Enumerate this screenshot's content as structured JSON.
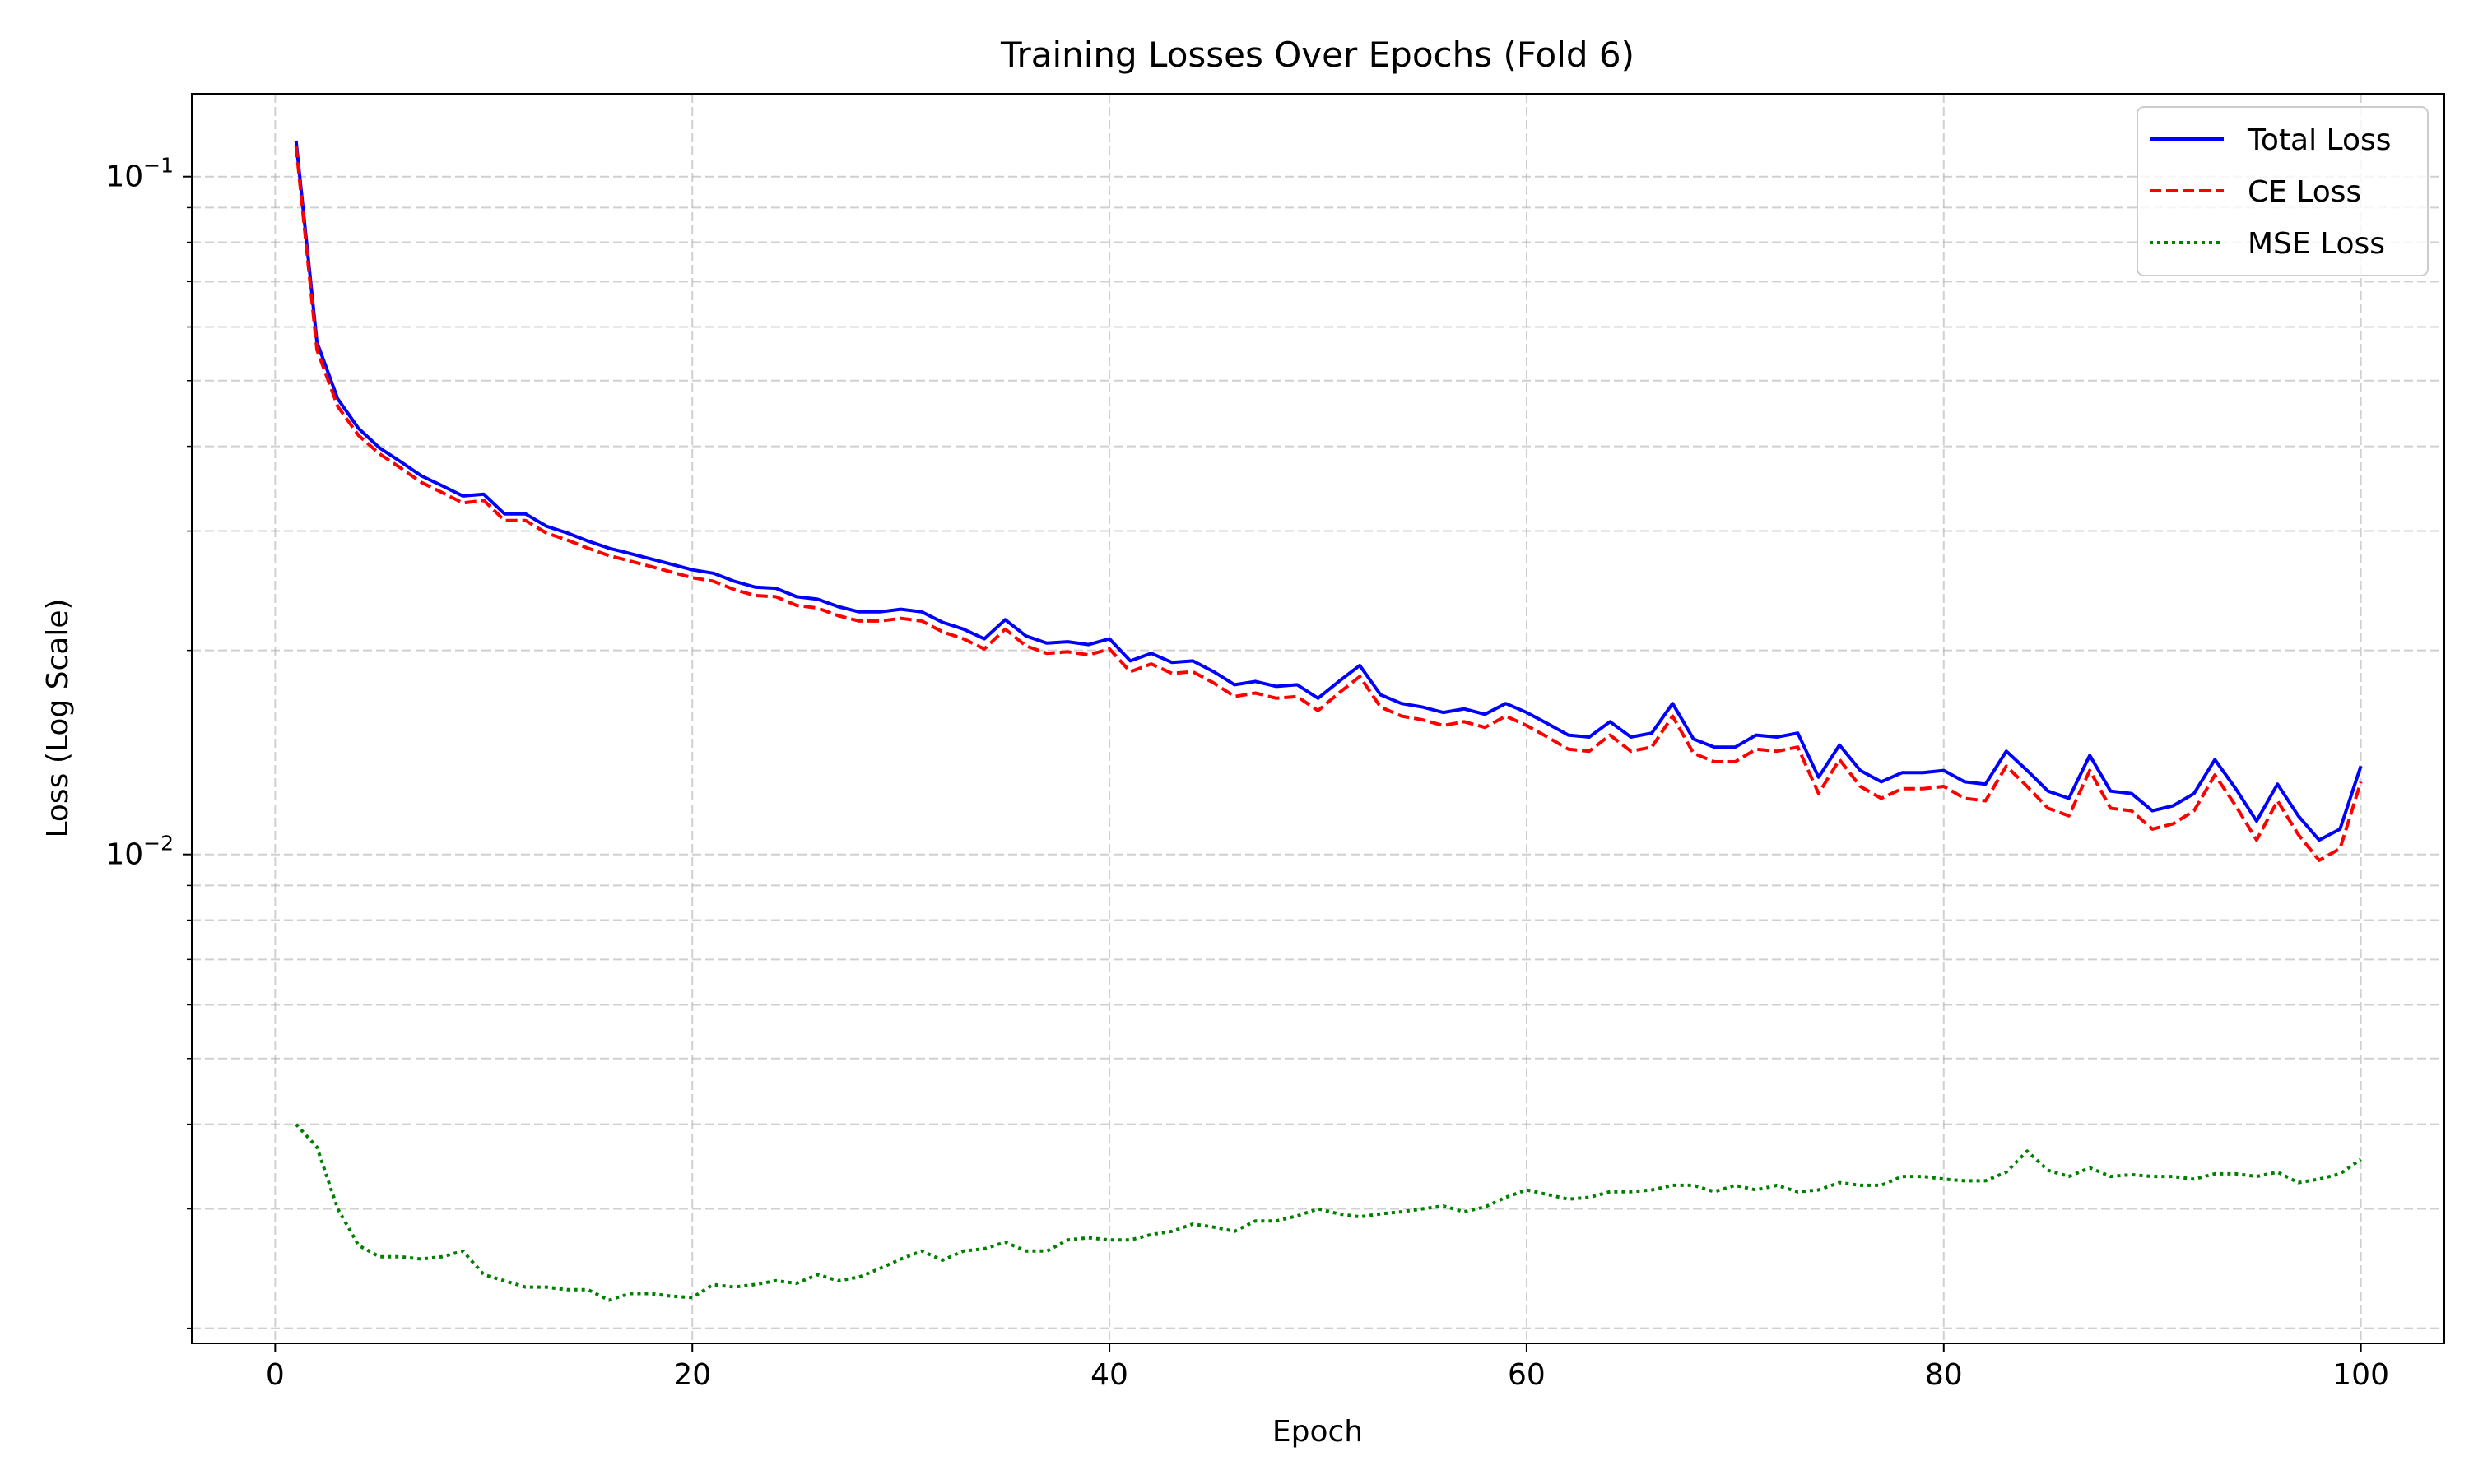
{
  "chart_data": {
    "type": "line",
    "title": "Training Losses Over Epochs (Fold 6)",
    "xlabel": "Epoch",
    "ylabel": "Loss (Log Scale)",
    "yscale": "log",
    "xlim": [
      -4,
      104
    ],
    "ylim": [
      0.0019,
      0.1325
    ],
    "x_ticks": [
      0,
      20,
      40,
      60,
      80,
      100
    ],
    "x_tick_labels": [
      "0",
      "20",
      "40",
      "60",
      "80",
      "100"
    ],
    "y_major_ticks": [
      0.01,
      0.1
    ],
    "y_major_tick_labels": [
      {
        "base": "10",
        "exp": "−2"
      },
      {
        "base": "10",
        "exp": "−1"
      }
    ],
    "grid": true,
    "legend": "top-right",
    "series": [
      {
        "name": "Total Loss",
        "color": "#0000ff",
        "style": "solid",
        "x": [
          1,
          2,
          3,
          4,
          5,
          6,
          7,
          8,
          9,
          10,
          11,
          12,
          13,
          14,
          15,
          16,
          17,
          18,
          19,
          20,
          21,
          22,
          23,
          24,
          25,
          26,
          27,
          28,
          29,
          30,
          31,
          32,
          33,
          34,
          35,
          36,
          37,
          38,
          39,
          40,
          41,
          42,
          43,
          44,
          45,
          46,
          47,
          48,
          49,
          50,
          51,
          52,
          53,
          54,
          55,
          56,
          57,
          58,
          59,
          60,
          61,
          62,
          63,
          64,
          65,
          66,
          67,
          68,
          69,
          70,
          71,
          72,
          73,
          74,
          75,
          76,
          77,
          78,
          79,
          80,
          81,
          82,
          83,
          84,
          85,
          86,
          87,
          88,
          89,
          90,
          91,
          92,
          93,
          94,
          95,
          96,
          97,
          98,
          99,
          100
        ],
        "values": [
          0.113,
          0.057,
          0.047,
          0.0425,
          0.0398,
          0.038,
          0.0362,
          0.035,
          0.0338,
          0.034,
          0.0318,
          0.0318,
          0.0305,
          0.0298,
          0.029,
          0.0283,
          0.0278,
          0.0273,
          0.0268,
          0.0263,
          0.026,
          0.0253,
          0.0248,
          0.0247,
          0.024,
          0.0238,
          0.0232,
          0.0228,
          0.0228,
          0.023,
          0.0228,
          0.022,
          0.0215,
          0.0208,
          0.0222,
          0.021,
          0.0205,
          0.0206,
          0.0204,
          0.0208,
          0.0193,
          0.0198,
          0.0192,
          0.0193,
          0.0186,
          0.0178,
          0.018,
          0.0177,
          0.0178,
          0.017,
          0.018,
          0.019,
          0.0172,
          0.0167,
          0.0165,
          0.0162,
          0.0164,
          0.0161,
          0.0167,
          0.0162,
          0.0156,
          0.015,
          0.0149,
          0.0157,
          0.0149,
          0.0151,
          0.0167,
          0.0148,
          0.0144,
          0.0144,
          0.015,
          0.0149,
          0.0151,
          0.013,
          0.0145,
          0.0133,
          0.0128,
          0.0132,
          0.0132,
          0.0133,
          0.0128,
          0.0127,
          0.0142,
          0.0133,
          0.0124,
          0.0121,
          0.014,
          0.0124,
          0.0123,
          0.0116,
          0.0118,
          0.0123,
          0.0138,
          0.0125,
          0.0112,
          0.0127,
          0.0114,
          0.0105,
          0.0109,
          0.0135
        ]
      },
      {
        "name": "CE Loss",
        "color": "#ff0000",
        "style": "dashed",
        "x": [
          1,
          2,
          3,
          4,
          5,
          6,
          7,
          8,
          9,
          10,
          11,
          12,
          13,
          14,
          15,
          16,
          17,
          18,
          19,
          20,
          21,
          22,
          23,
          24,
          25,
          26,
          27,
          28,
          29,
          30,
          31,
          32,
          33,
          34,
          35,
          36,
          37,
          38,
          39,
          40,
          41,
          42,
          43,
          44,
          45,
          46,
          47,
          48,
          49,
          50,
          51,
          52,
          53,
          54,
          55,
          56,
          57,
          58,
          59,
          60,
          61,
          62,
          63,
          64,
          65,
          66,
          67,
          68,
          69,
          70,
          71,
          72,
          73,
          74,
          75,
          76,
          77,
          78,
          79,
          80,
          81,
          82,
          83,
          84,
          85,
          86,
          87,
          88,
          89,
          90,
          91,
          92,
          93,
          94,
          95,
          96,
          97,
          98,
          99,
          100
        ],
        "values": [
          0.111,
          0.0555,
          0.0458,
          0.0415,
          0.039,
          0.0372,
          0.0354,
          0.0342,
          0.033,
          0.0333,
          0.0311,
          0.0311,
          0.0298,
          0.0291,
          0.0283,
          0.0276,
          0.0271,
          0.0266,
          0.0261,
          0.0256,
          0.0253,
          0.0246,
          0.0241,
          0.024,
          0.0233,
          0.0231,
          0.0225,
          0.0221,
          0.0221,
          0.0223,
          0.0221,
          0.0213,
          0.0208,
          0.0201,
          0.0215,
          0.0203,
          0.0198,
          0.0199,
          0.0197,
          0.0201,
          0.0186,
          0.0191,
          0.0185,
          0.0186,
          0.0179,
          0.0171,
          0.0173,
          0.017,
          0.0171,
          0.0163,
          0.0173,
          0.0183,
          0.0165,
          0.016,
          0.0158,
          0.0155,
          0.0157,
          0.0154,
          0.016,
          0.0155,
          0.0149,
          0.0143,
          0.0142,
          0.015,
          0.0142,
          0.0144,
          0.016,
          0.0141,
          0.0137,
          0.0137,
          0.0143,
          0.0142,
          0.0144,
          0.0123,
          0.0138,
          0.0126,
          0.0121,
          0.0125,
          0.0125,
          0.0126,
          0.0121,
          0.012,
          0.0135,
          0.0126,
          0.0117,
          0.0114,
          0.0133,
          0.0117,
          0.0116,
          0.0109,
          0.0111,
          0.0116,
          0.0131,
          0.0118,
          0.0105,
          0.012,
          0.0107,
          0.0098,
          0.0102,
          0.0128
        ]
      },
      {
        "name": "MSE Loss",
        "color": "#008000",
        "style": "dotted",
        "x": [
          1,
          2,
          3,
          4,
          5,
          6,
          7,
          8,
          9,
          10,
          11,
          12,
          13,
          14,
          15,
          16,
          17,
          18,
          19,
          20,
          21,
          22,
          23,
          24,
          25,
          26,
          27,
          28,
          29,
          30,
          31,
          32,
          33,
          34,
          35,
          36,
          37,
          38,
          39,
          40,
          41,
          42,
          43,
          44,
          45,
          46,
          47,
          48,
          49,
          50,
          51,
          52,
          53,
          54,
          55,
          56,
          57,
          58,
          59,
          60,
          61,
          62,
          63,
          64,
          65,
          66,
          67,
          68,
          69,
          70,
          71,
          72,
          73,
          74,
          75,
          76,
          77,
          78,
          79,
          80,
          81,
          82,
          83,
          84,
          85,
          86,
          87,
          88,
          89,
          90,
          91,
          92,
          93,
          94,
          95,
          96,
          97,
          98,
          99,
          100
        ],
        "values": [
          0.004,
          0.0037,
          0.003,
          0.00265,
          0.00255,
          0.00255,
          0.00253,
          0.00255,
          0.0026,
          0.0024,
          0.00235,
          0.0023,
          0.0023,
          0.00228,
          0.00228,
          0.0022,
          0.00225,
          0.00225,
          0.00223,
          0.00222,
          0.00232,
          0.0023,
          0.00232,
          0.00235,
          0.00233,
          0.0024,
          0.00235,
          0.00238,
          0.00245,
          0.00253,
          0.0026,
          0.00252,
          0.0026,
          0.00262,
          0.00268,
          0.0026,
          0.0026,
          0.0027,
          0.00272,
          0.0027,
          0.0027,
          0.00275,
          0.00278,
          0.00285,
          0.00282,
          0.00278,
          0.00288,
          0.00288,
          0.00293,
          0.003,
          0.00295,
          0.00292,
          0.00295,
          0.00297,
          0.003,
          0.00303,
          0.00297,
          0.00302,
          0.00312,
          0.0032,
          0.00315,
          0.0031,
          0.00312,
          0.00318,
          0.00318,
          0.0032,
          0.00325,
          0.00325,
          0.00318,
          0.00325,
          0.0032,
          0.00325,
          0.00318,
          0.0032,
          0.00328,
          0.00325,
          0.00325,
          0.00335,
          0.00335,
          0.00332,
          0.0033,
          0.0033,
          0.0034,
          0.00365,
          0.00342,
          0.00335,
          0.00345,
          0.00335,
          0.00337,
          0.00335,
          0.00335,
          0.00332,
          0.00338,
          0.00338,
          0.00335,
          0.0034,
          0.00328,
          0.00332,
          0.00338,
          0.00355
        ]
      }
    ]
  }
}
